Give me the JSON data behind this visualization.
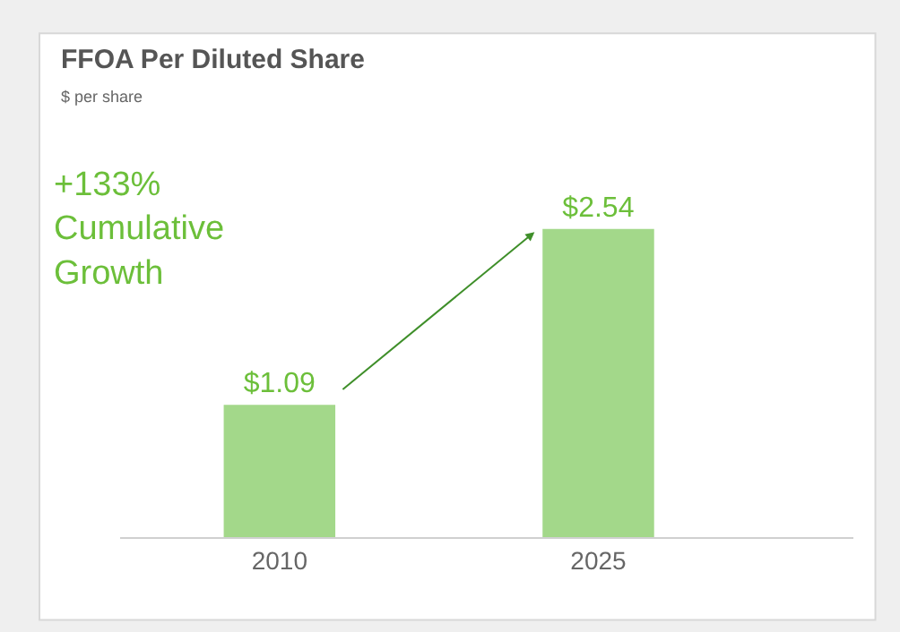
{
  "chart_data": {
    "type": "bar",
    "title": "FFOA Per Diluted Share",
    "subtitle": "$ per share",
    "categories": [
      "2010",
      "2025"
    ],
    "values": [
      1.09,
      2.54
    ],
    "value_labels": [
      "$1.09",
      "$2.54"
    ],
    "color": "#a3d88a",
    "annotations": [
      "+133% Cumulative Growth"
    ],
    "orientation": "vertical"
  }
}
